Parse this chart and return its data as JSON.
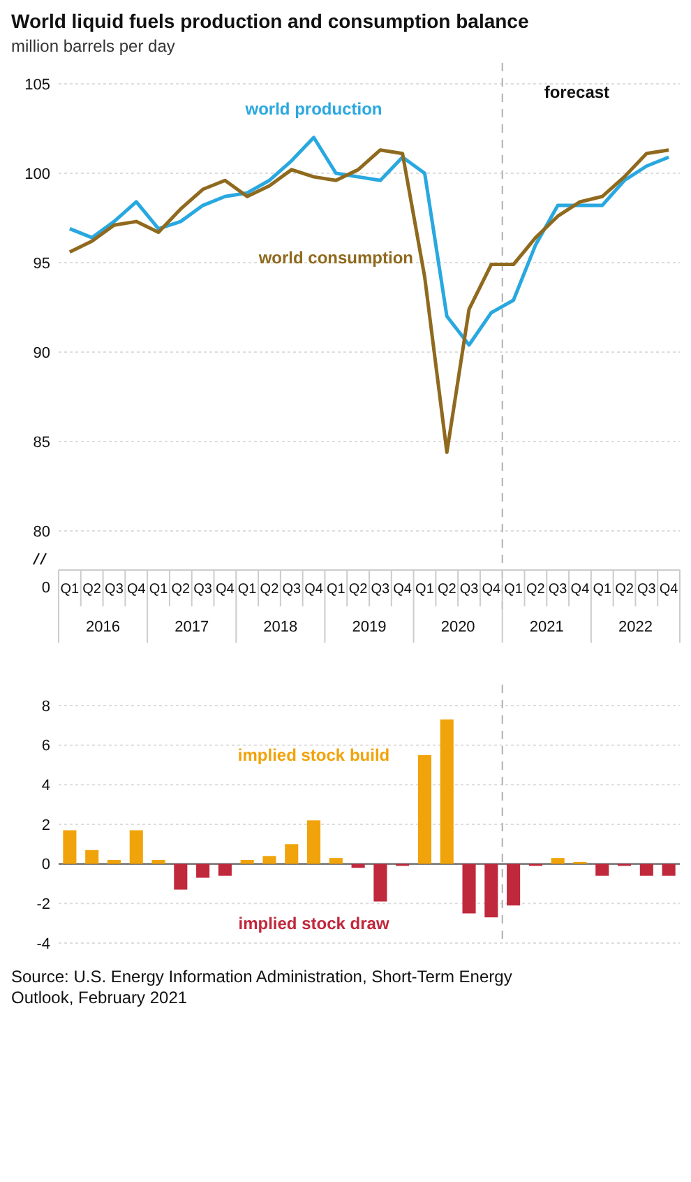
{
  "chart_data": [
    {
      "type": "line",
      "title": "World liquid fuels production and consumption balance",
      "subtitle": "million barrels per day",
      "categories": [
        "Q1",
        "Q2",
        "Q3",
        "Q4",
        "Q1",
        "Q2",
        "Q3",
        "Q4",
        "Q1",
        "Q2",
        "Q3",
        "Q4",
        "Q1",
        "Q2",
        "Q3",
        "Q4",
        "Q1",
        "Q2",
        "Q3",
        "Q4",
        "Q1",
        "Q2",
        "Q3",
        "Q4",
        "Q1",
        "Q2",
        "Q3",
        "Q4"
      ],
      "series": [
        {
          "name": "world production",
          "color": "#29a8e0",
          "values": [
            96.9,
            96.4,
            97.3,
            98.4,
            96.9,
            97.3,
            98.2,
            98.7,
            98.9,
            99.6,
            100.7,
            102.0,
            100.0,
            99.8,
            99.6,
            100.9,
            100.0,
            92.0,
            90.4,
            92.2,
            92.9,
            96.0,
            98.2,
            98.2,
            98.2,
            99.6,
            100.4,
            100.9
          ]
        },
        {
          "name": "world consumption",
          "color": "#8f6a1e",
          "values": [
            95.6,
            96.2,
            97.1,
            97.3,
            96.7,
            98.0,
            99.1,
            99.6,
            98.7,
            99.3,
            100.2,
            99.8,
            99.6,
            100.2,
            101.3,
            101.1,
            94.2,
            84.4,
            92.4,
            94.9,
            94.9,
            96.4,
            97.6,
            98.4,
            98.7,
            99.8,
            101.1,
            101.3
          ]
        }
      ],
      "ylim": [
        80,
        105
      ],
      "yticks": [
        80,
        85,
        90,
        95,
        100,
        105
      ],
      "grid": "y",
      "annotations": [
        "0",
        "2016",
        "2017",
        "2018",
        "2019",
        "2020",
        "2021",
        "2022",
        "forecast"
      ]
    },
    {
      "type": "bar",
      "categories": [
        null,
        null,
        null,
        null,
        null,
        null,
        null,
        null,
        null,
        null,
        null,
        null,
        null,
        null,
        null,
        null,
        null,
        null,
        null,
        null,
        null,
        null,
        null,
        null,
        null,
        null,
        null,
        null
      ],
      "series": [
        {
          "name": "implied stock build",
          "color": "#f0a30a",
          "values": [
            1.7,
            0.7,
            0.2,
            1.7,
            0.2,
            null,
            null,
            null,
            0.2,
            0.4,
            1.0,
            2.2,
            0.3,
            null,
            null,
            null,
            5.5,
            7.3,
            null,
            null,
            null,
            null,
            0.3,
            0.1,
            null,
            null,
            null,
            null
          ]
        },
        {
          "name": "implied stock draw",
          "color": "#c0283c",
          "values": [
            null,
            null,
            null,
            null,
            null,
            -1.3,
            -0.7,
            -0.6,
            null,
            null,
            null,
            null,
            null,
            -0.2,
            -1.9,
            -0.1,
            null,
            null,
            -2.5,
            -2.7,
            -2.1,
            -0.1,
            null,
            null,
            -0.6,
            -0.1,
            -0.6,
            -0.6
          ]
        }
      ],
      "ylim": [
        -4,
        8
      ],
      "yticks": [
        -4,
        -2,
        0,
        2,
        4,
        6,
        8
      ],
      "grid": "y",
      "tick_labels": "y",
      "annotations": [
        "Source: U.S. Energy Information Administration, Short-Term Energy Outlook, February 2021"
      ]
    }
  ]
}
